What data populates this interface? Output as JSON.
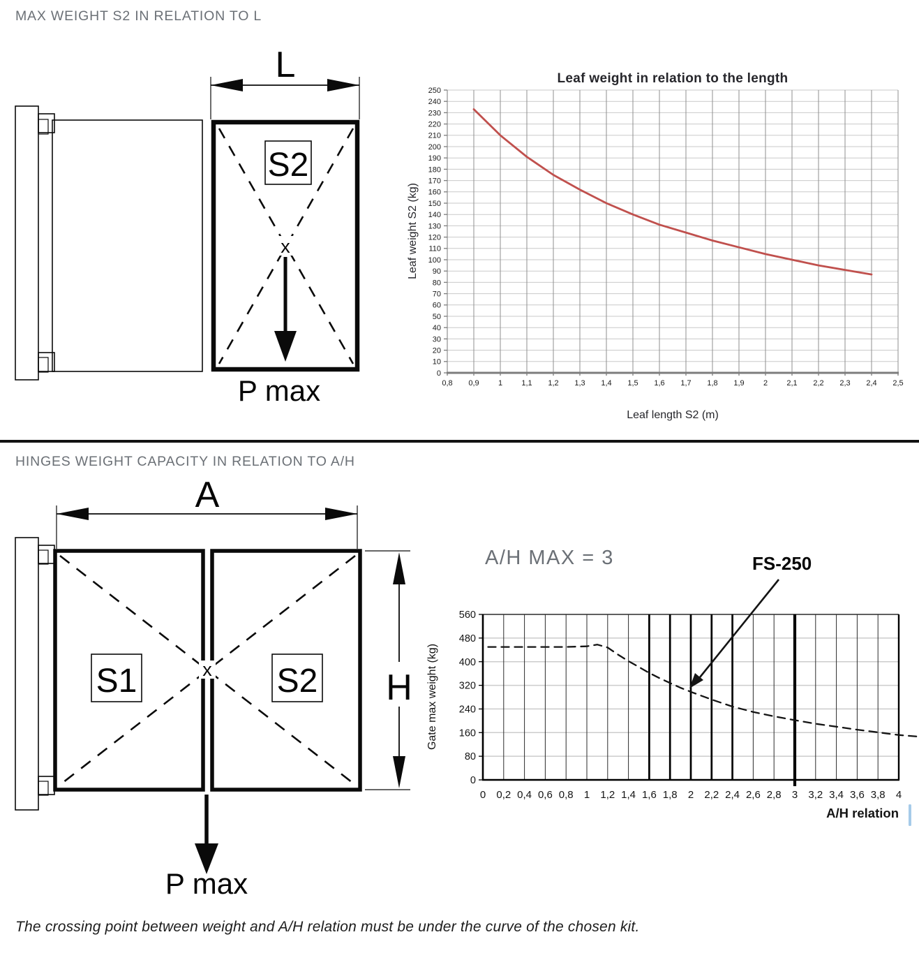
{
  "page": {
    "section1_title": "MAX WEIGHT S2 IN RELATION TO L",
    "section2_title": "HINGES WEIGHT CAPACITY IN RELATION TO A/H",
    "footer_note": "The crossing point between weight and A/H relation must be under the curve of the chosen kit."
  },
  "colors": {
    "heading_gray": "#6b7076",
    "curve_red": "#c0504d",
    "curve_black": "#141414",
    "blue_mark": "#a6cbe9"
  },
  "diagram1": {
    "dim_label": "L",
    "leaf_label": "S2",
    "center_mark": "x",
    "force_label": "P max"
  },
  "diagram2": {
    "width_label": "A",
    "height_label": "H",
    "leaf1_label": "S1",
    "leaf2_label": "S2",
    "center_mark": "x",
    "force_label": "P max"
  },
  "chart_data": [
    {
      "type": "line",
      "title": "Leaf weight in relation to the length",
      "xlabel": "Leaf length S2 (m)",
      "ylabel": "Leaf weight S2 (kg)",
      "xlim": [
        0.8,
        2.5
      ],
      "ylim": [
        0,
        250
      ],
      "grid": true,
      "legend_position": "none",
      "x_tick_labels": [
        "0,8",
        "0,9",
        "1",
        "1,1",
        "1,2",
        "1,3",
        "1,4",
        "1,5",
        "1,6",
        "1,7",
        "1,8",
        "1,9",
        "2",
        "2,1",
        "2,2",
        "2,3",
        "2,4",
        "2,5"
      ],
      "y_tick_labels": [
        "0",
        "10",
        "20",
        "30",
        "40",
        "50",
        "60",
        "70",
        "80",
        "90",
        "100",
        "110",
        "120",
        "130",
        "140",
        "150",
        "160",
        "170",
        "180",
        "190",
        "200",
        "210",
        "220",
        "230",
        "240",
        "250"
      ],
      "line_color": "#c0504d",
      "line_style": "solid",
      "series": [
        {
          "name": "Leaf weight S2",
          "x": [
            0.9,
            1.0,
            1.1,
            1.2,
            1.3,
            1.4,
            1.5,
            1.6,
            1.7,
            1.8,
            1.9,
            2.0,
            2.1,
            2.2,
            2.3,
            2.4
          ],
          "y": [
            233,
            210,
            191,
            175,
            162,
            150,
            140,
            131,
            124,
            117,
            111,
            105,
            100,
            95,
            91,
            87
          ]
        }
      ]
    },
    {
      "type": "line",
      "title": "",
      "xlabel": "A/H relation",
      "ylabel": "Gate max weight (kg)",
      "xlim": [
        0,
        4
      ],
      "ylim": [
        0,
        560
      ],
      "grid": true,
      "legend_position": "none",
      "x_tick_labels": [
        "0",
        "0,2",
        "0,4",
        "0,6",
        "0,8",
        "1",
        "1,2",
        "1,4",
        "1,6",
        "1,8",
        "2",
        "2,2",
        "2,4",
        "2,6",
        "2,8",
        "3",
        "3,2",
        "3,4",
        "3,6",
        "3,8",
        "4"
      ],
      "y_tick_labels": [
        "0",
        "80",
        "160",
        "240",
        "320",
        "400",
        "480",
        "560"
      ],
      "bold_x_ticks": [
        "1,6",
        "1,8",
        "2",
        "2,2",
        "2,4"
      ],
      "emphasis_x_tick": "3",
      "line_color": "#141414",
      "line_style": "dashed",
      "annotations": {
        "ah_max_label": "A/H MAX = 3",
        "kit_label": "FS-250"
      },
      "series": [
        {
          "name": "FS-250",
          "x": [
            0.05,
            0.2,
            0.4,
            0.6,
            0.8,
            1.0,
            1.1,
            1.2,
            1.3,
            1.4,
            1.5,
            1.6,
            1.7,
            1.8,
            1.9,
            2.0,
            2.2,
            2.4,
            2.6,
            2.8,
            3.0,
            3.2,
            3.4,
            3.6,
            3.8,
            4.0,
            4.17
          ],
          "y": [
            450,
            450,
            450,
            450,
            450,
            452,
            458,
            448,
            424,
            402,
            382,
            362,
            344,
            328,
            312,
            298,
            272,
            248,
            230,
            215,
            202,
            190,
            180,
            170,
            161,
            152,
            147
          ]
        }
      ]
    }
  ]
}
